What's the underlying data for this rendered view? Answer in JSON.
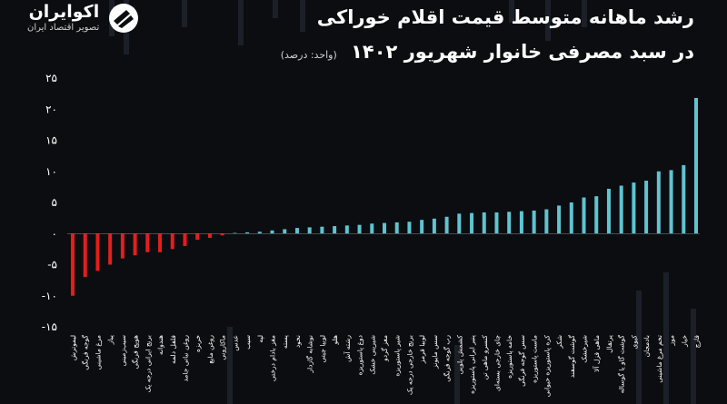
{
  "title": {
    "line1": "رشد ماهانه متوسط قیمت اقلام خوراکی",
    "line2": "در سبد مصرفی خانوار شهریور ۱۴۰۲",
    "unit": "(واحد: درصد)"
  },
  "brand": {
    "name": "اکوایران",
    "tagline": "تصویر اقتصاد ایران",
    "icon": "ecoiran-logo-icon"
  },
  "colors": {
    "background": "#0c0d10",
    "negative": "#e41e1e",
    "positive": "#5ec4d2",
    "text": "#ffffff",
    "zero_line": "#8a8a8a"
  },
  "chart_data": {
    "type": "bar",
    "categories": [
      "لیموترش",
      "گوجه فرنگی",
      "مرغ ماشینی",
      "پیاز",
      "سیب‌زمینی",
      "هویج فرنگی",
      "برنج ایرانی درجه یک",
      "هندوانه",
      "فلفل دلمه",
      "روغن نباتی جامد",
      "خربزه",
      "روغن مایع",
      "ماکارونی",
      "عدس",
      "سیب",
      "لپه",
      "مغز بادام درختی",
      "پسته",
      "نخود",
      "نوشابه گازدار",
      "لوبیا چیتی",
      "هلو",
      "رشته آش",
      "دوغ پاستوریزه",
      "شیرینی خشک",
      "مغز گردو",
      "شیر پاستوریزه",
      "برنج خارجی درجه یک",
      "لوبیا قرمز",
      "سس مایونز",
      "رب گوجه فرنگی",
      "کشمش پلویی",
      "پنیر ایرانی پاستوریزه",
      "کنسرو ماهی تن",
      "چای خارجی بسته‌ای",
      "خامه پاستوریزه",
      "سس گوجه فرنگی",
      "ماست پاستوریزه",
      "کره پاستوریزه حیوانی",
      "شکر",
      "گوشت گوسفند",
      "شیرخشک",
      "ماهی قزل آلا",
      "پرتقال",
      "گوشت گاو یا گوساله",
      "کیوی",
      "بادمجان",
      "تخم مرغ ماشینی",
      "موز",
      "خیار",
      "قارچ"
    ],
    "values": [
      -10,
      -7,
      -6,
      -5,
      -4,
      -3.5,
      -3,
      -3,
      -2.5,
      -2,
      -1,
      -0.7,
      -0.3,
      0.1,
      0.2,
      0.3,
      0.5,
      0.7,
      0.9,
      1,
      1.1,
      1.2,
      1.3,
      1.4,
      1.6,
      1.7,
      1.8,
      1.9,
      2.2,
      2.4,
      2.7,
      3.2,
      3.3,
      3.4,
      3.4,
      3.5,
      3.6,
      3.7,
      3.9,
      4.5,
      5,
      5.8,
      6,
      7.2,
      7.7,
      8.2,
      8.5,
      10,
      10.2,
      11,
      21.8
    ],
    "ylim": [
      -15,
      25
    ],
    "yticks": [
      "۲۵",
      "۲۰",
      "۱۵",
      "۱۰",
      "۵",
      "۰",
      "-۵",
      "-۱۰",
      "-۱۵"
    ],
    "ytick_values": [
      25,
      20,
      15,
      10,
      5,
      0,
      -5,
      -10,
      -15
    ],
    "grid": false
  }
}
